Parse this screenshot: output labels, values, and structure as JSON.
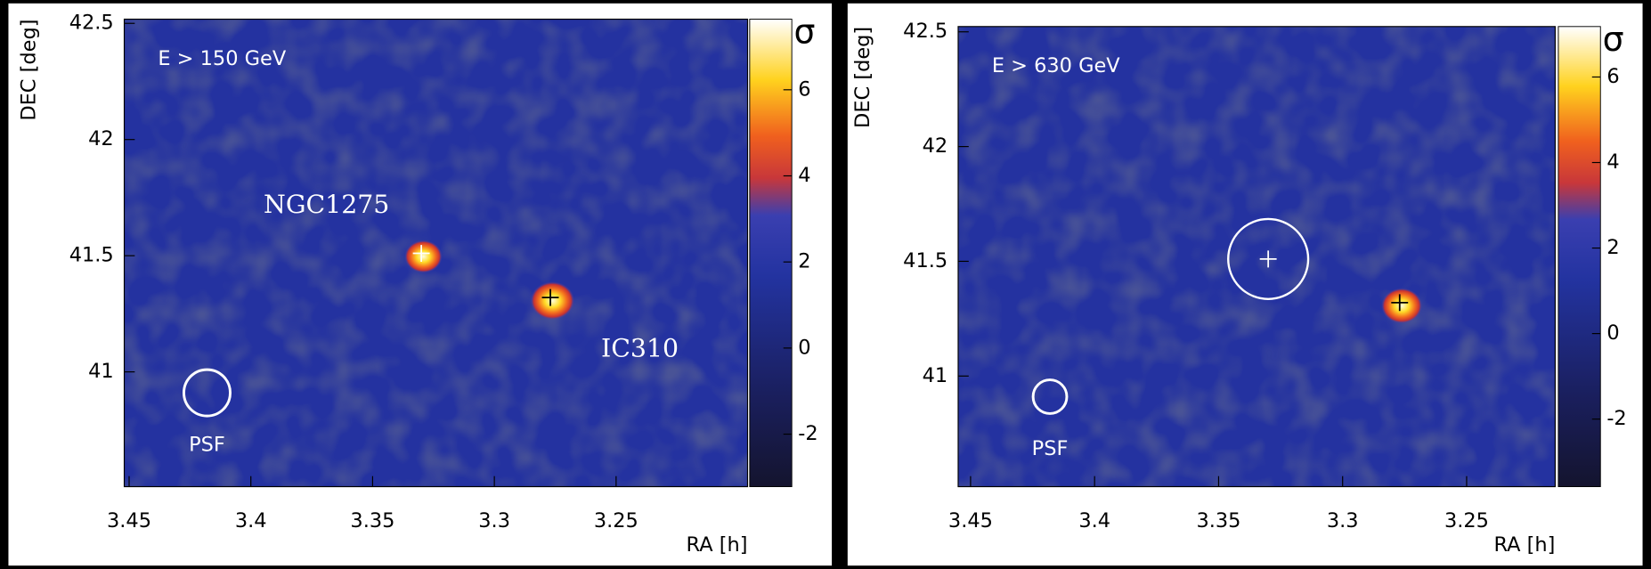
{
  "chart_data": [
    {
      "type": "heatmap",
      "annotation": "E > 150 GeV",
      "xlabel": "RA [h]",
      "ylabel": "DEC [deg]",
      "colorbar_label": "σ",
      "xlim": [
        3.452,
        3.196
      ],
      "xticks": [
        3.45,
        3.4,
        3.35,
        3.3,
        3.25
      ],
      "ylim": [
        40.506,
        42.518
      ],
      "yticks": [
        41,
        41.5,
        42,
        42.5
      ],
      "clim": [
        -3.22,
        7.64
      ],
      "cticks": [
        -2,
        0,
        2,
        4,
        6
      ],
      "psf_label": "PSF",
      "psf": {
        "x": 3.418,
        "y": 40.91
      },
      "sources": [
        {
          "name": "NGC1275",
          "x": 3.33,
          "y": 41.51,
          "sigma": 6
        },
        {
          "name": "IC310",
          "x": 3.277,
          "y": 41.32,
          "sigma": 7
        }
      ]
    },
    {
      "type": "heatmap",
      "annotation": "E > 630 GeV",
      "xlabel": "RA [h]",
      "ylabel": "DEC [deg]",
      "colorbar_label": "σ",
      "xlim": [
        3.455,
        3.2143
      ],
      "xticks": [
        3.45,
        3.4,
        3.35,
        3.3,
        3.25
      ],
      "ylim": [
        40.518,
        42.523
      ],
      "yticks": [
        41,
        41.5,
        42,
        42.5
      ],
      "clim": [
        -3.58,
        7.18
      ],
      "cticks": [
        -2,
        0,
        2,
        4,
        6
      ],
      "psf_label": "PSF",
      "psf": {
        "x": 3.418,
        "y": 40.91
      },
      "sources": [
        {
          "x": 3.33,
          "y": 41.51
        },
        {
          "x": 3.277,
          "y": 41.32,
          "sigma": 6.5
        }
      ]
    }
  ]
}
